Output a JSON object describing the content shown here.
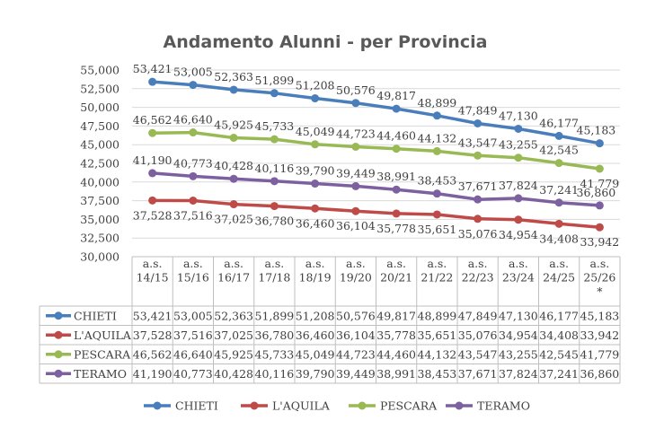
{
  "chart_data": {
    "type": "line",
    "title": "Andamento Alunni - per Provincia",
    "categories": [
      [
        "a.s.",
        "14/15"
      ],
      [
        "a.s.",
        "15/16"
      ],
      [
        "a.s.",
        "16/17"
      ],
      [
        "a.s.",
        "17/18"
      ],
      [
        "a.s.",
        "18/19"
      ],
      [
        "a.s.",
        "19/20"
      ],
      [
        "a.s.",
        "20/21"
      ],
      [
        "a.s.",
        "21/22"
      ],
      [
        "a.s.",
        "22/23"
      ],
      [
        "a.s.",
        "23/24"
      ],
      [
        "a.s.",
        "24/25"
      ],
      [
        "a.s.",
        "25/26",
        "*"
      ]
    ],
    "ylim": [
      30000,
      55000
    ],
    "ytick_step": 2500,
    "yticks": [
      "30,000",
      "32,500",
      "35,000",
      "37,500",
      "40,000",
      "42,500",
      "45,000",
      "47,500",
      "50,000",
      "52,500",
      "55,000"
    ],
    "grid": true,
    "legend_position": "bottom",
    "data_table": true,
    "series": [
      {
        "name": "CHIETI",
        "color": "#4a7ebb",
        "values": [
          53421,
          53005,
          52363,
          51899,
          51208,
          50576,
          49817,
          48899,
          47849,
          47130,
          46177,
          45183
        ],
        "labels": [
          "53,421",
          "53,005",
          "52,363",
          "51,899",
          "51,208",
          "50,576",
          "49,817",
          "48,899",
          "47,849",
          "47,130",
          "46,177",
          "45,183"
        ]
      },
      {
        "name": "L'AQUILA",
        "color": "#be4b48",
        "values": [
          37528,
          37516,
          37025,
          36780,
          36460,
          36104,
          35778,
          35651,
          35076,
          34954,
          34408,
          33942
        ],
        "labels": [
          "37,528",
          "37,516",
          "37,025",
          "36,780",
          "36,460",
          "36,104",
          "35,778",
          "35,651",
          "35,076",
          "34,954",
          "34,408",
          "33,942"
        ]
      },
      {
        "name": "PESCARA",
        "color": "#98b954",
        "values": [
          46562,
          46640,
          45925,
          45733,
          45049,
          44723,
          44460,
          44132,
          43547,
          43255,
          42545,
          41779
        ],
        "labels": [
          "46,562",
          "46,640",
          "45,925",
          "45,733",
          "45,049",
          "44,723",
          "44,460",
          "44,132",
          "43,547",
          "43,255",
          "42,545",
          "41,779"
        ]
      },
      {
        "name": "TERAMO",
        "color": "#7d60a0",
        "values": [
          41190,
          40773,
          40428,
          40116,
          39790,
          39449,
          38991,
          38453,
          37671,
          37824,
          37241,
          36860
        ],
        "labels": [
          "41,190",
          "40,773",
          "40,428",
          "40,116",
          "39,790",
          "39,449",
          "38,991",
          "38,453",
          "37,671",
          "37,824",
          "37,241",
          "36,860"
        ]
      }
    ]
  }
}
